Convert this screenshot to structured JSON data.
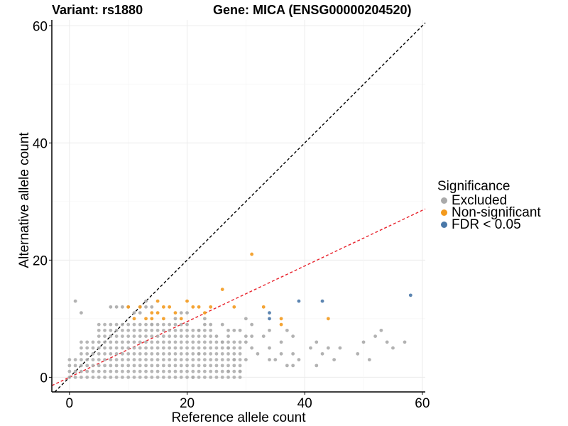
{
  "header": {
    "variant": "Variant: rs1880",
    "gene": "Gene: MICA (ENSG00000204520)"
  },
  "chart_data": {
    "type": "scatter",
    "xlabel": "Reference allele count",
    "ylabel": "Alternative allele count",
    "xlim": [
      -3,
      60.5
    ],
    "ylim": [
      -2.5,
      61
    ],
    "xticks": [
      0,
      20,
      40,
      60
    ],
    "yticks": [
      0,
      20,
      40,
      60
    ],
    "grid": true,
    "reference_lines": [
      {
        "name": "identity",
        "slope": 1,
        "intercept": 0,
        "color": "#000000",
        "style": "dashed"
      },
      {
        "name": "fit",
        "slope": 0.475,
        "intercept": 0,
        "color": "#e8202a",
        "style": "dashed"
      }
    ],
    "colors": {
      "Excluded": "#aaaaaa",
      "Non-significant": "#f39a1e",
      "FDR < 0.05": "#4a78a8"
    },
    "legend": {
      "title": "Significance",
      "position": "right",
      "entries": [
        "Excluded",
        "Non-significant",
        "FDR < 0.05"
      ]
    },
    "series": [
      {
        "name": "Excluded",
        "points": [
          [
            1,
            13
          ],
          [
            2,
            11
          ],
          [
            7,
            12
          ],
          [
            8,
            12
          ],
          [
            9,
            12
          ],
          [
            10,
            12
          ],
          [
            11,
            11
          ],
          [
            12,
            12
          ],
          [
            12,
            11
          ],
          [
            13,
            13
          ],
          [
            13,
            12
          ],
          [
            14,
            12
          ],
          [
            14,
            9
          ],
          [
            18,
            10
          ],
          [
            19,
            11
          ],
          [
            20,
            11
          ],
          [
            20,
            9
          ],
          [
            23,
            10
          ],
          [
            23,
            9
          ],
          [
            24,
            9
          ],
          [
            26,
            9
          ],
          [
            27,
            8
          ],
          [
            27,
            7
          ],
          [
            28,
            8
          ],
          [
            29,
            8
          ],
          [
            30,
            10
          ],
          [
            30,
            7
          ],
          [
            31,
            7
          ],
          [
            31,
            5
          ],
          [
            33,
            7
          ],
          [
            34,
            8
          ],
          [
            34,
            3
          ],
          [
            36,
            4
          ],
          [
            36,
            6
          ],
          [
            37,
            2
          ],
          [
            37,
            8
          ],
          [
            38,
            7
          ],
          [
            38,
            4
          ],
          [
            39,
            3
          ],
          [
            41,
            5
          ],
          [
            42,
            2
          ],
          [
            43,
            4
          ],
          [
            44,
            5
          ],
          [
            45,
            3
          ],
          [
            46,
            5
          ],
          [
            49,
            4
          ],
          [
            52,
            7
          ],
          [
            53,
            8
          ],
          [
            54,
            6
          ],
          [
            55,
            5
          ],
          [
            57,
            6
          ],
          [
            50,
            6
          ],
          [
            51,
            3
          ],
          [
            35,
            3
          ],
          [
            38,
            2
          ],
          [
            42,
            6
          ],
          [
            29,
            1
          ],
          [
            30,
            3
          ],
          [
            32,
            4
          ],
          [
            34,
            5
          ],
          [
            28,
            3
          ],
          [
            27,
            1
          ],
          [
            21,
            0
          ],
          [
            25,
            7
          ],
          [
            26,
            6
          ],
          [
            22,
            8
          ],
          [
            22,
            4
          ],
          [
            27,
            5
          ],
          [
            30,
            6
          ],
          [
            31,
            9
          ]
        ]
      },
      {
        "name": "Non-significant",
        "points": [
          [
            10,
            12
          ],
          [
            11,
            10
          ],
          [
            12,
            12
          ],
          [
            13,
            10
          ],
          [
            14,
            11
          ],
          [
            14,
            10
          ],
          [
            15,
            13
          ],
          [
            15,
            11
          ],
          [
            16,
            10
          ],
          [
            17,
            12
          ],
          [
            18,
            11
          ],
          [
            19,
            10
          ],
          [
            20,
            13
          ],
          [
            21,
            12
          ],
          [
            22,
            12
          ],
          [
            23,
            11
          ],
          [
            24,
            12
          ],
          [
            26,
            15
          ],
          [
            28,
            12
          ],
          [
            31,
            21
          ],
          [
            33,
            12
          ],
          [
            36,
            10
          ],
          [
            36,
            9
          ],
          [
            44,
            10
          ],
          [
            16,
            12
          ]
        ]
      },
      {
        "name": "FDR < 0.05",
        "points": [
          [
            34,
            11
          ],
          [
            34,
            10
          ],
          [
            39,
            13
          ],
          [
            43,
            13
          ],
          [
            58,
            14
          ]
        ]
      }
    ]
  }
}
